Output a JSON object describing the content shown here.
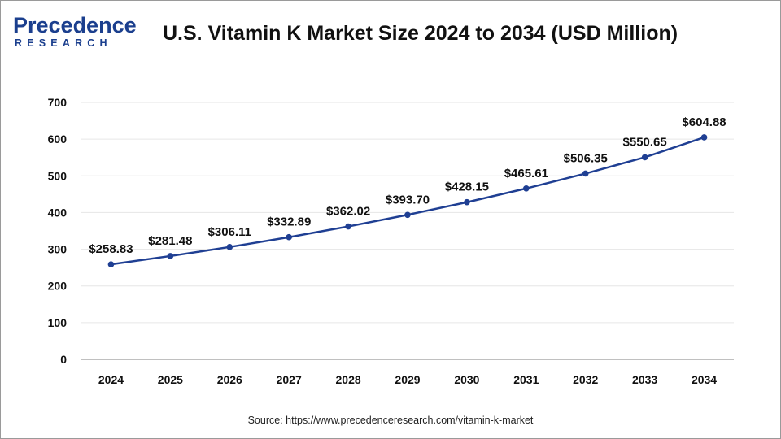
{
  "header": {
    "logo_main": "Precedence",
    "logo_sub": "RESEARCH",
    "title": "U.S. Vitamin K Market Size 2024 to 2034 (USD Million)"
  },
  "source": "Source: https://www.precedenceresearch.com/vitamin-k-market",
  "colors": {
    "line": "#1f3f93",
    "marker": "#1f3f93",
    "grid": "#e6e6e6",
    "axis": "#9a9a9a",
    "brand": "#1b3f8e"
  },
  "chart_data": {
    "type": "line",
    "title": "U.S. Vitamin K Market Size 2024 to 2034 (USD Million)",
    "xlabel": "",
    "ylabel": "",
    "categories": [
      "2024",
      "2025",
      "2026",
      "2027",
      "2028",
      "2029",
      "2030",
      "2031",
      "2032",
      "2033",
      "2034"
    ],
    "series": [
      {
        "values": [
          258.83,
          281.48,
          306.11,
          332.89,
          362.02,
          393.7,
          428.15,
          465.61,
          506.35,
          550.65,
          604.88
        ],
        "data_labels": [
          "$258.83",
          "$281.48",
          "$306.11",
          "$332.89",
          "$362.02",
          "$393.70",
          "$428.15",
          "$465.61",
          "$506.35",
          "$550.65",
          "$604.88"
        ]
      }
    ],
    "ylim": [
      0,
      700
    ],
    "yticks": [
      0,
      100,
      200,
      300,
      400,
      500,
      600,
      700
    ],
    "grid": true,
    "legend": "none"
  }
}
